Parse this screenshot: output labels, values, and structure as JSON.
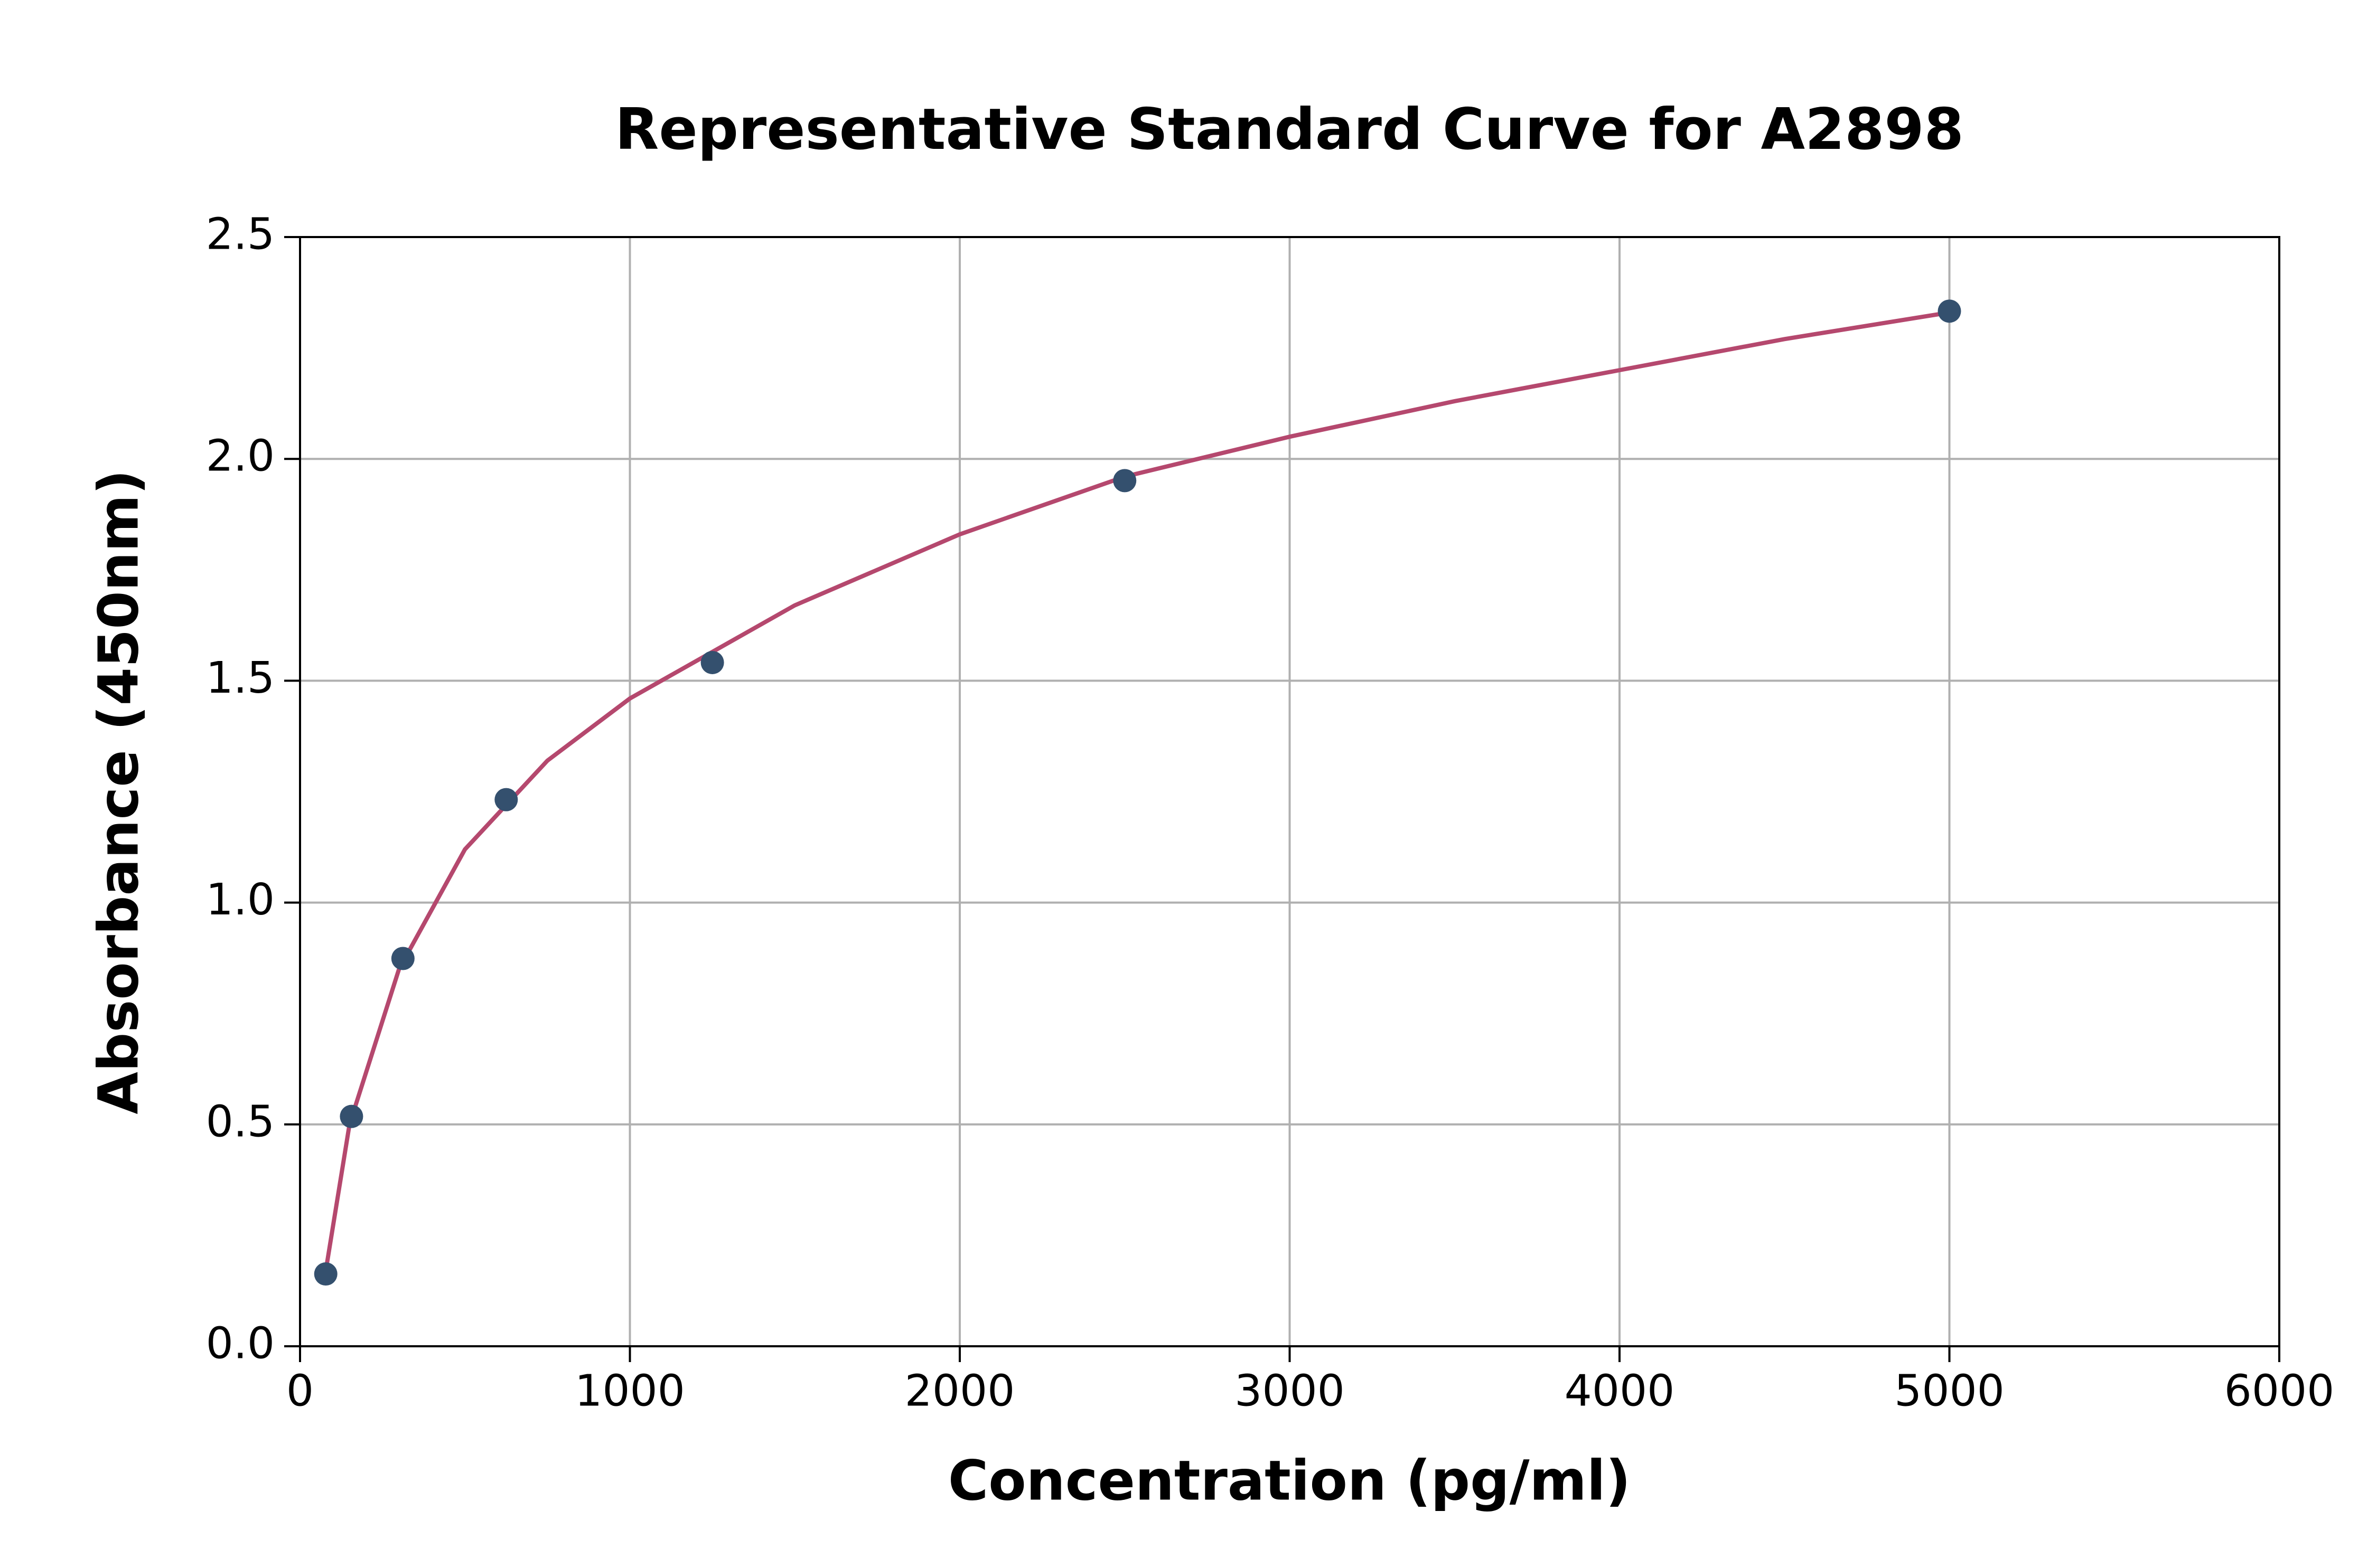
{
  "chart_data": {
    "type": "scatter",
    "title": "Representative Standard Curve for A2898",
    "x_label": "Concentration (pg/ml)",
    "y_label": "Absorbance (450nm)",
    "points": {
      "color": "#34506e",
      "x": [
        78,
        156,
        312,
        625,
        1250,
        2500,
        5000
      ],
      "values": [
        0.163,
        0.518,
        0.874,
        1.232,
        1.541,
        1.951,
        2.333
      ]
    },
    "fit": {
      "color": "#b5486e",
      "x": [
        78,
        150,
        300,
        500,
        750,
        1000,
        1500,
        2000,
        2500,
        3000,
        3500,
        4000,
        4500,
        5000
      ],
      "values": [
        0.17,
        0.5,
        0.85,
        1.12,
        1.32,
        1.46,
        1.67,
        1.83,
        1.96,
        2.05,
        2.13,
        2.2,
        2.27,
        2.33
      ]
    },
    "xlim": [
      0,
      6000
    ],
    "xticks": [
      0,
      1000,
      2000,
      3000,
      4000,
      5000,
      6000
    ],
    "ylim": [
      0,
      2.5
    ],
    "yticks": [
      {
        "value": 0,
        "label": "0.0"
      },
      0.5,
      {
        "value": 1,
        "label": "1.0"
      },
      1.5,
      {
        "value": 2,
        "label": "2.0"
      },
      2.5
    ],
    "grid": true
  }
}
